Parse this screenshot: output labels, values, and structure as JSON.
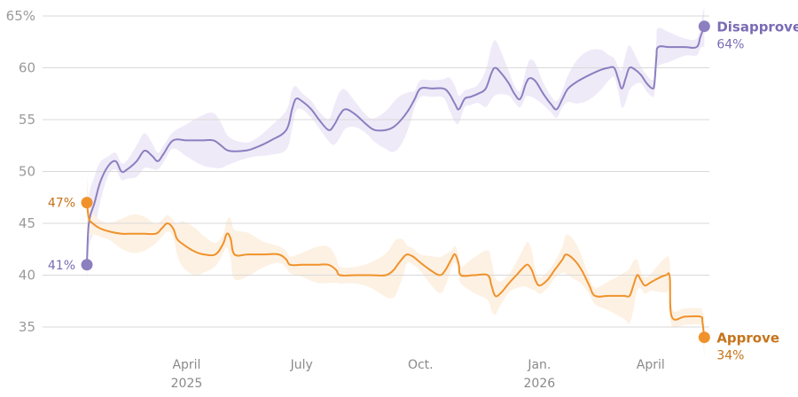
{
  "chart_data": {
    "type": "line",
    "title": "",
    "xlabel": "",
    "ylabel": "",
    "ylim": [
      33,
      66
    ],
    "y_ticks": [
      {
        "value": 65,
        "label": "65%"
      },
      {
        "value": 60,
        "label": "60"
      },
      {
        "value": 55,
        "label": "55"
      },
      {
        "value": 50,
        "label": "50"
      },
      {
        "value": 45,
        "label": "45"
      },
      {
        "value": 40,
        "label": "40"
      },
      {
        "value": 35,
        "label": "35"
      }
    ],
    "x_range": [
      0,
      16
    ],
    "x_ticks": [
      {
        "value": 2.6,
        "label": "April",
        "sublabel": "2025"
      },
      {
        "value": 5.6,
        "label": "July",
        "sublabel": ""
      },
      {
        "value": 8.7,
        "label": "Oct.",
        "sublabel": ""
      },
      {
        "value": 11.8,
        "label": "Jan.",
        "sublabel": "2026"
      },
      {
        "value": 14.7,
        "label": "April",
        "sublabel": ""
      }
    ],
    "series": [
      {
        "name": "Disapprove",
        "color": "#8b7fc0",
        "label_color": "#7a6cb5",
        "band_color": "#efeaf8",
        "start_label": "41%",
        "end_label": "64%",
        "points": [
          [
            0,
            41
          ],
          [
            0.05,
            45
          ],
          [
            0.2,
            47
          ],
          [
            0.35,
            49
          ],
          [
            0.55,
            50.5
          ],
          [
            0.75,
            51
          ],
          [
            0.9,
            50
          ],
          [
            1.05,
            50.2
          ],
          [
            1.3,
            51
          ],
          [
            1.5,
            52
          ],
          [
            1.7,
            51.5
          ],
          [
            1.85,
            51
          ],
          [
            2.0,
            51.7
          ],
          [
            2.25,
            53
          ],
          [
            2.6,
            53
          ],
          [
            3.0,
            53
          ],
          [
            3.3,
            53
          ],
          [
            3.5,
            52.5
          ],
          [
            3.7,
            52
          ],
          [
            4.1,
            52
          ],
          [
            4.4,
            52.3
          ],
          [
            4.8,
            53
          ],
          [
            5.2,
            54
          ],
          [
            5.35,
            56
          ],
          [
            5.45,
            57
          ],
          [
            5.6,
            56.8
          ],
          [
            5.85,
            56
          ],
          [
            6.05,
            55
          ],
          [
            6.3,
            54
          ],
          [
            6.45,
            54.5
          ],
          [
            6.6,
            55.5
          ],
          [
            6.75,
            56
          ],
          [
            7.0,
            55.5
          ],
          [
            7.3,
            54.5
          ],
          [
            7.5,
            54
          ],
          [
            7.8,
            54
          ],
          [
            8.0,
            54.3
          ],
          [
            8.2,
            55
          ],
          [
            8.4,
            56
          ],
          [
            8.55,
            57
          ],
          [
            8.7,
            58
          ],
          [
            9.0,
            58
          ],
          [
            9.3,
            58
          ],
          [
            9.45,
            57.5
          ],
          [
            9.6,
            56.5
          ],
          [
            9.7,
            56
          ],
          [
            9.85,
            57
          ],
          [
            10.0,
            57.2
          ],
          [
            10.2,
            57.5
          ],
          [
            10.4,
            58
          ],
          [
            10.55,
            59.5
          ],
          [
            10.65,
            60
          ],
          [
            10.8,
            59.5
          ],
          [
            11.0,
            58.5
          ],
          [
            11.15,
            57.5
          ],
          [
            11.3,
            57
          ],
          [
            11.45,
            58.5
          ],
          [
            11.55,
            59
          ],
          [
            11.7,
            58.7
          ],
          [
            11.9,
            57.5
          ],
          [
            12.1,
            56.5
          ],
          [
            12.25,
            56
          ],
          [
            12.4,
            57
          ],
          [
            12.55,
            58
          ],
          [
            12.8,
            58.7
          ],
          [
            13.1,
            59.3
          ],
          [
            13.4,
            59.8
          ],
          [
            13.6,
            60
          ],
          [
            13.75,
            60
          ],
          [
            13.85,
            59
          ],
          [
            13.95,
            58
          ],
          [
            14.05,
            59
          ],
          [
            14.15,
            60
          ],
          [
            14.3,
            59.8
          ],
          [
            14.45,
            59.3
          ],
          [
            14.6,
            58.5
          ],
          [
            14.75,
            58
          ],
          [
            14.8,
            58.5
          ],
          [
            14.85,
            61
          ],
          [
            14.9,
            62
          ],
          [
            15.2,
            62
          ],
          [
            15.6,
            62
          ],
          [
            15.9,
            62
          ],
          [
            16.0,
            63
          ],
          [
            16.1,
            64
          ]
        ]
      },
      {
        "name": "Approve",
        "color": "#f0922b",
        "label_color": "#c6741b",
        "band_color": "#fdf1e3",
        "start_label": "47%",
        "end_label": "34%",
        "points": [
          [
            0,
            47
          ],
          [
            0.05,
            45.5
          ],
          [
            0.15,
            45
          ],
          [
            0.35,
            44.5
          ],
          [
            0.6,
            44.2
          ],
          [
            0.9,
            44
          ],
          [
            1.2,
            44
          ],
          [
            1.5,
            44
          ],
          [
            1.8,
            44
          ],
          [
            1.95,
            44.5
          ],
          [
            2.1,
            45
          ],
          [
            2.25,
            44.5
          ],
          [
            2.35,
            43.5
          ],
          [
            2.5,
            43
          ],
          [
            2.8,
            42.3
          ],
          [
            3.05,
            42
          ],
          [
            3.35,
            42
          ],
          [
            3.55,
            43
          ],
          [
            3.65,
            44
          ],
          [
            3.75,
            43.5
          ],
          [
            3.85,
            42
          ],
          [
            4.2,
            42
          ],
          [
            4.6,
            42
          ],
          [
            5.0,
            42
          ],
          [
            5.2,
            41.5
          ],
          [
            5.3,
            41
          ],
          [
            5.6,
            41
          ],
          [
            6.0,
            41
          ],
          [
            6.3,
            41
          ],
          [
            6.5,
            40.5
          ],
          [
            6.6,
            40
          ],
          [
            7.0,
            40
          ],
          [
            7.4,
            40
          ],
          [
            7.8,
            40
          ],
          [
            8.0,
            40.5
          ],
          [
            8.1,
            41
          ],
          [
            8.25,
            41.7
          ],
          [
            8.35,
            42
          ],
          [
            8.5,
            41.8
          ],
          [
            8.7,
            41.2
          ],
          [
            8.95,
            40.5
          ],
          [
            9.2,
            40
          ],
          [
            9.35,
            40.5
          ],
          [
            9.5,
            41.5
          ],
          [
            9.6,
            42
          ],
          [
            9.7,
            41
          ],
          [
            9.75,
            40
          ],
          [
            10.1,
            40
          ],
          [
            10.45,
            40
          ],
          [
            10.55,
            39
          ],
          [
            10.65,
            38
          ],
          [
            10.8,
            38.3
          ],
          [
            11.0,
            39.2
          ],
          [
            11.2,
            40
          ],
          [
            11.4,
            40.8
          ],
          [
            11.5,
            41
          ],
          [
            11.6,
            40.5
          ],
          [
            11.7,
            39.5
          ],
          [
            11.8,
            39
          ],
          [
            12.0,
            39.5
          ],
          [
            12.2,
            40.5
          ],
          [
            12.4,
            41.5
          ],
          [
            12.5,
            42
          ],
          [
            12.7,
            41.5
          ],
          [
            12.9,
            40.5
          ],
          [
            13.1,
            39
          ],
          [
            13.25,
            38
          ],
          [
            13.6,
            38
          ],
          [
            14.0,
            38
          ],
          [
            14.15,
            38
          ],
          [
            14.25,
            39
          ],
          [
            14.35,
            40
          ],
          [
            14.45,
            39.5
          ],
          [
            14.55,
            39
          ],
          [
            14.7,
            39.3
          ],
          [
            14.9,
            39.7
          ],
          [
            15.1,
            40
          ],
          [
            15.2,
            39.8
          ],
          [
            15.25,
            36
          ],
          [
            15.6,
            36
          ],
          [
            16.0,
            36
          ],
          [
            16.05,
            35.5
          ],
          [
            16.1,
            34
          ]
        ]
      }
    ]
  }
}
